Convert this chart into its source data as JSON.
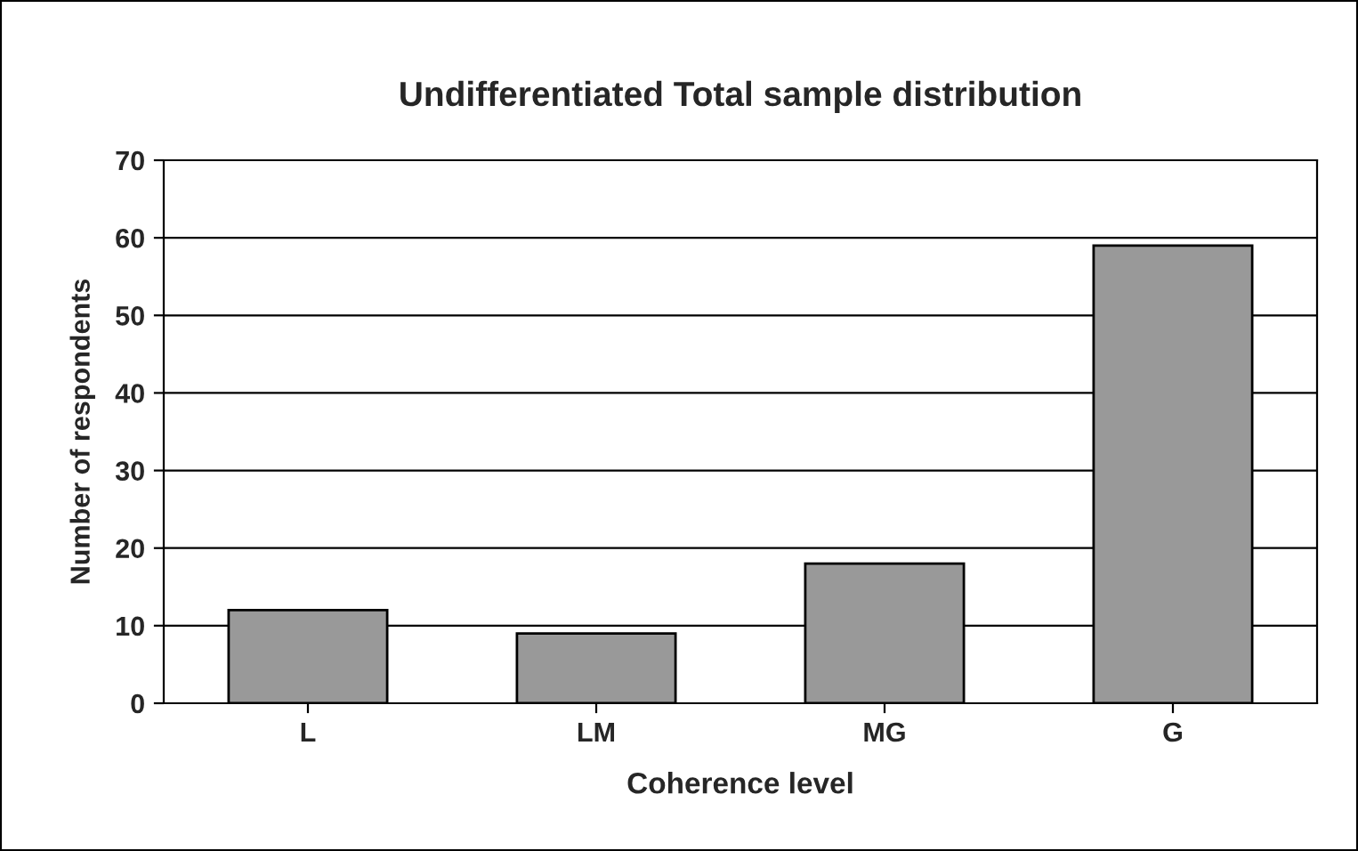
{
  "chart_data": {
    "type": "bar",
    "title": "Undifferentiated Total sample distribution",
    "xlabel": "Coherence level",
    "ylabel": "Number of respondents",
    "categories": [
      "L",
      "LM",
      "MG",
      "G"
    ],
    "values": [
      12,
      9,
      18,
      59
    ],
    "color": "#999999",
    "ylim": [
      0,
      70
    ],
    "yticks": [
      0,
      10,
      20,
      30,
      40,
      50,
      60,
      70
    ],
    "grid": "y"
  }
}
